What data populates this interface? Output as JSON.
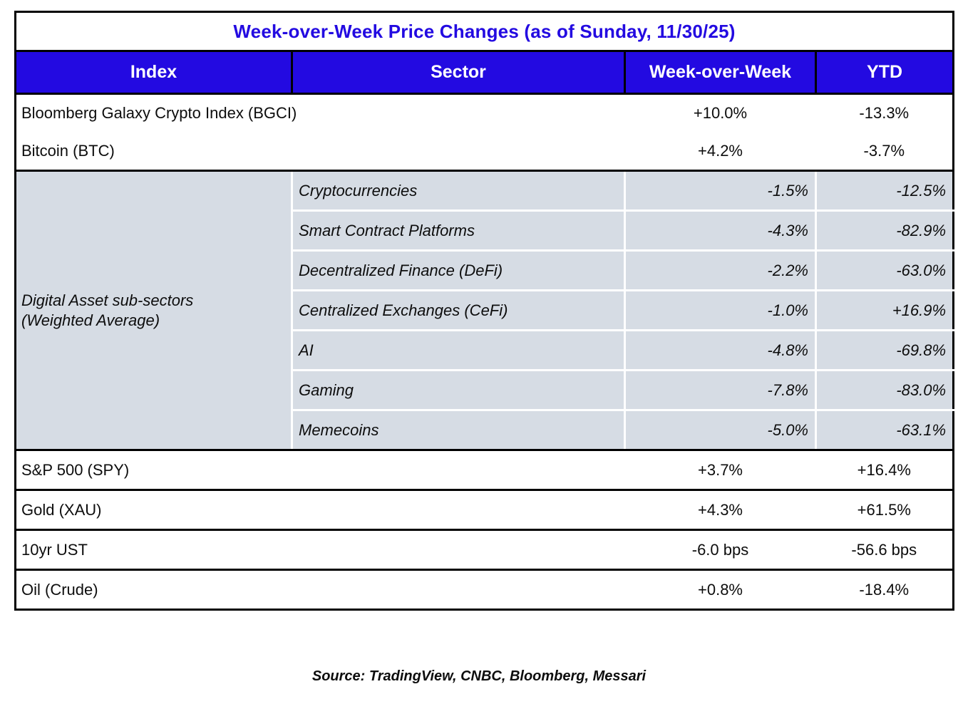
{
  "title": "Week-over-Week Price Changes (as of Sunday, 11/30/25)",
  "colors": {
    "accent_blue": "#230AE1",
    "header_text": "#FFFFFF",
    "subsection_bg": "#D6DCE4",
    "border_black": "#000000",
    "divider_white": "#FFFFFF"
  },
  "columns": {
    "index": "Index",
    "sector": "Sector",
    "wow": "Week-over-Week",
    "ytd": "YTD"
  },
  "rows_top": [
    {
      "index": "Bloomberg Galaxy Crypto Index (BGCI)",
      "wow": "+10.0%",
      "ytd": "-13.3%"
    },
    {
      "index": "Bitcoin (BTC)",
      "wow": "+4.2%",
      "ytd": "-3.7%"
    }
  ],
  "subsection": {
    "label_line1": "Digital Asset sub-sectors",
    "label_line2": "(Weighted Average)",
    "rows": [
      {
        "sector": "Cryptocurrencies",
        "wow": "-1.5%",
        "ytd": "-12.5%"
      },
      {
        "sector": "Smart Contract Platforms",
        "wow": "-4.3%",
        "ytd": "-82.9%"
      },
      {
        "sector": "Decentralized Finance (DeFi)",
        "wow": "-2.2%",
        "ytd": "-63.0%"
      },
      {
        "sector": "Centralized Exchanges (CeFi)",
        "wow": "-1.0%",
        "ytd": "+16.9%"
      },
      {
        "sector": "AI",
        "wow": "-4.8%",
        "ytd": "-69.8%"
      },
      {
        "sector": "Gaming",
        "wow": "-7.8%",
        "ytd": "-83.0%"
      },
      {
        "sector": "Memecoins",
        "wow": "-5.0%",
        "ytd": "-63.1%"
      }
    ]
  },
  "rows_bottom": [
    {
      "index": "S&P 500 (SPY)",
      "wow": "+3.7%",
      "ytd": "+16.4%"
    },
    {
      "index": "Gold (XAU)",
      "wow": "+4.3%",
      "ytd": "+61.5%"
    },
    {
      "index": "10yr UST",
      "wow": "-6.0 bps",
      "ytd": "-56.6 bps"
    },
    {
      "index": "Oil (Crude)",
      "wow": "+0.8%",
      "ytd": "-18.4%"
    }
  ],
  "source": "Source: TradingView, CNBC, Bloomberg, Messari",
  "chart_data": {
    "type": "table",
    "title": "Week-over-Week Price Changes (as of Sunday, 11/30/25)",
    "columns": [
      "Index",
      "Sector",
      "Week-over-Week",
      "YTD"
    ],
    "rows": [
      [
        "Bloomberg Galaxy Crypto Index (BGCI)",
        "",
        "+10.0%",
        "-13.3%"
      ],
      [
        "Bitcoin (BTC)",
        "",
        "+4.2%",
        "-3.7%"
      ],
      [
        "Digital Asset sub-sectors (Weighted Average)",
        "Cryptocurrencies",
        "-1.5%",
        "-12.5%"
      ],
      [
        "Digital Asset sub-sectors (Weighted Average)",
        "Smart Contract Platforms",
        "-4.3%",
        "-82.9%"
      ],
      [
        "Digital Asset sub-sectors (Weighted Average)",
        "Decentralized Finance (DeFi)",
        "-2.2%",
        "-63.0%"
      ],
      [
        "Digital Asset sub-sectors (Weighted Average)",
        "Centralized Exchanges (CeFi)",
        "-1.0%",
        "+16.9%"
      ],
      [
        "Digital Asset sub-sectors (Weighted Average)",
        "AI",
        "-4.8%",
        "-69.8%"
      ],
      [
        "Digital Asset sub-sectors (Weighted Average)",
        "Gaming",
        "-7.8%",
        "-83.0%"
      ],
      [
        "Digital Asset sub-sectors (Weighted Average)",
        "Memecoins",
        "-5.0%",
        "-63.1%"
      ],
      [
        "S&P 500 (SPY)",
        "",
        "+3.7%",
        "+16.4%"
      ],
      [
        "Gold (XAU)",
        "",
        "+4.3%",
        "+61.5%"
      ],
      [
        "10yr UST",
        "",
        "-6.0 bps",
        "-56.6 bps"
      ],
      [
        "Oil (Crude)",
        "",
        "+0.8%",
        "-18.4%"
      ]
    ],
    "source_note": "Source: TradingView, CNBC, Bloomberg, Messari"
  }
}
